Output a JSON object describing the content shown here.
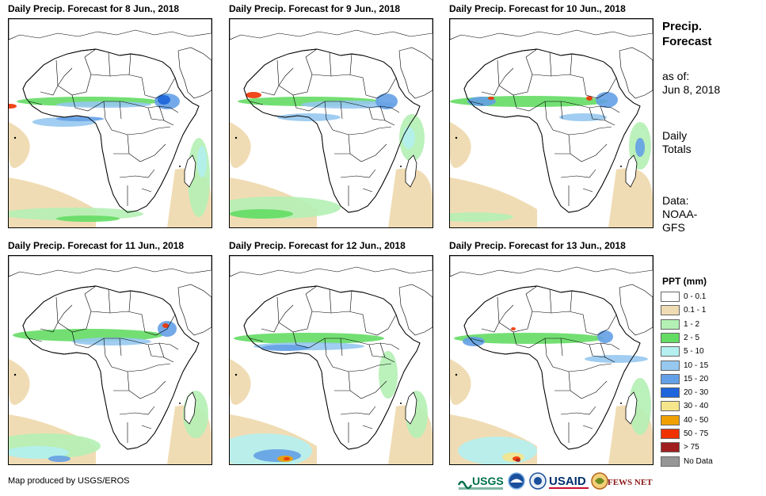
{
  "panels": [
    {
      "title": "Daily Precip. Forecast for 8 Jun., 2018"
    },
    {
      "title": "Daily Precip. Forecast for 9 Jun., 2018"
    },
    {
      "title": "Daily Precip. Forecast for 10 Jun., 2018"
    },
    {
      "title": "Daily Precip. Forecast for 11 Jun., 2018"
    },
    {
      "title": "Daily Precip. Forecast for 12 Jun., 2018"
    },
    {
      "title": "Daily Precip. Forecast for 13 Jun., 2018"
    }
  ],
  "side": {
    "title_line1": "Precip.",
    "title_line2": "Forecast",
    "asof_line1": "as of:",
    "asof_line2": "Jun 8, 2018",
    "totals_line1": "Daily",
    "totals_line2": "Totals",
    "data_line1": "Data:",
    "data_line2": "NOAA-",
    "data_line3": "GFS"
  },
  "legend": {
    "title": "PPT (mm)",
    "items": [
      {
        "label": "0 - 0.1",
        "color": "#ffffff"
      },
      {
        "label": "0.1 - 1",
        "color": "#f0dcb4"
      },
      {
        "label": "1 - 2",
        "color": "#b4f0b4"
      },
      {
        "label": "2 - 5",
        "color": "#64dc64"
      },
      {
        "label": "5 - 10",
        "color": "#b4f0f0"
      },
      {
        "label": "10 - 15",
        "color": "#96c8f0"
      },
      {
        "label": "15 - 20",
        "color": "#64a0e6"
      },
      {
        "label": "20 - 30",
        "color": "#1e64dc"
      },
      {
        "label": "30 - 40",
        "color": "#f5e68c"
      },
      {
        "label": "40 - 50",
        "color": "#f0a000"
      },
      {
        "label": "50 - 75",
        "color": "#f03200"
      },
      {
        "label": "> 75",
        "color": "#a01e1e"
      },
      {
        "label": "No Data",
        "color": "#969696"
      }
    ]
  },
  "credit": "Map produced by USGS/EROS",
  "logos": {
    "usgs": "USGS",
    "usaid": "USAID",
    "fewsnet": "FEWS NET"
  }
}
